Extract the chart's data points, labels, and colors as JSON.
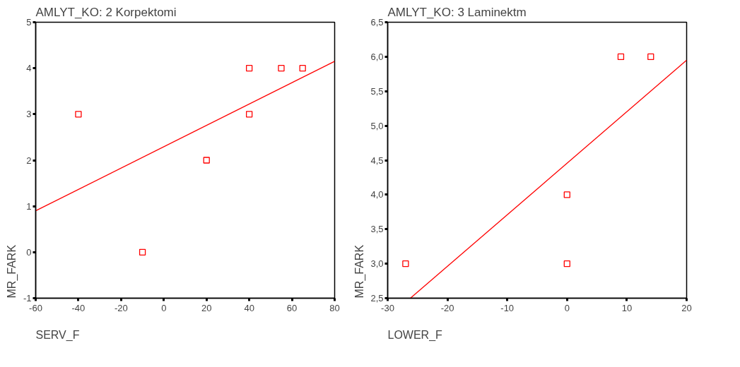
{
  "chart_data": [
    {
      "type": "scatter",
      "title": "AMLYT_KO:              2   Korpektomi",
      "xlabel": "SERV_F",
      "ylabel": "MR_FARK",
      "xlim": [
        -60,
        80
      ],
      "xticks": [
        -60,
        -40,
        -20,
        0,
        20,
        40,
        60,
        80
      ],
      "ylim": [
        -1,
        5
      ],
      "yticks": [
        -1,
        0,
        1,
        2,
        3,
        4,
        5
      ],
      "grid": false,
      "marker": "square",
      "series": [
        {
          "color": "#ff0000",
          "x": [
            -40,
            -10,
            20,
            40,
            40,
            55,
            65
          ],
          "values": [
            3,
            0,
            2,
            4,
            3,
            4,
            4
          ]
        },
        {
          "type": "line",
          "marker": "none",
          "color": "#ff0000",
          "x": [
            -60,
            80
          ],
          "values": [
            0.9,
            4.15
          ]
        }
      ]
    },
    {
      "type": "scatter",
      "title": "AMLYT_KO:              3   Laminektm",
      "xlabel": "LOWER_F",
      "ylabel": "MR_FARK",
      "xlim": [
        -30,
        20
      ],
      "xticks": [
        -30,
        -20,
        -10,
        0,
        10,
        20
      ],
      "ylim": [
        2.5,
        6.5
      ],
      "yticks": [
        {
          "value": 2.5,
          "label": "2,5"
        },
        {
          "value": 3,
          "label": "3,0"
        },
        {
          "value": 3.5,
          "label": "3,5"
        },
        {
          "value": 4,
          "label": "4,0"
        },
        {
          "value": 4.5,
          "label": "4,5"
        },
        {
          "value": 5,
          "label": "5,0"
        },
        {
          "value": 5.5,
          "label": "5,5"
        },
        {
          "value": 6,
          "label": "6,0"
        },
        {
          "value": 6.5,
          "label": "6,5"
        }
      ],
      "grid": false,
      "marker": "square",
      "series": [
        {
          "color": "#ff0000",
          "x": [
            -27,
            0,
            0,
            9,
            14
          ],
          "values": [
            3,
            4,
            3,
            6,
            6
          ]
        },
        {
          "type": "line",
          "marker": "none",
          "color": "#ff0000",
          "x": [
            -26.2,
            20
          ],
          "values": [
            2.5,
            5.95
          ]
        }
      ]
    }
  ]
}
